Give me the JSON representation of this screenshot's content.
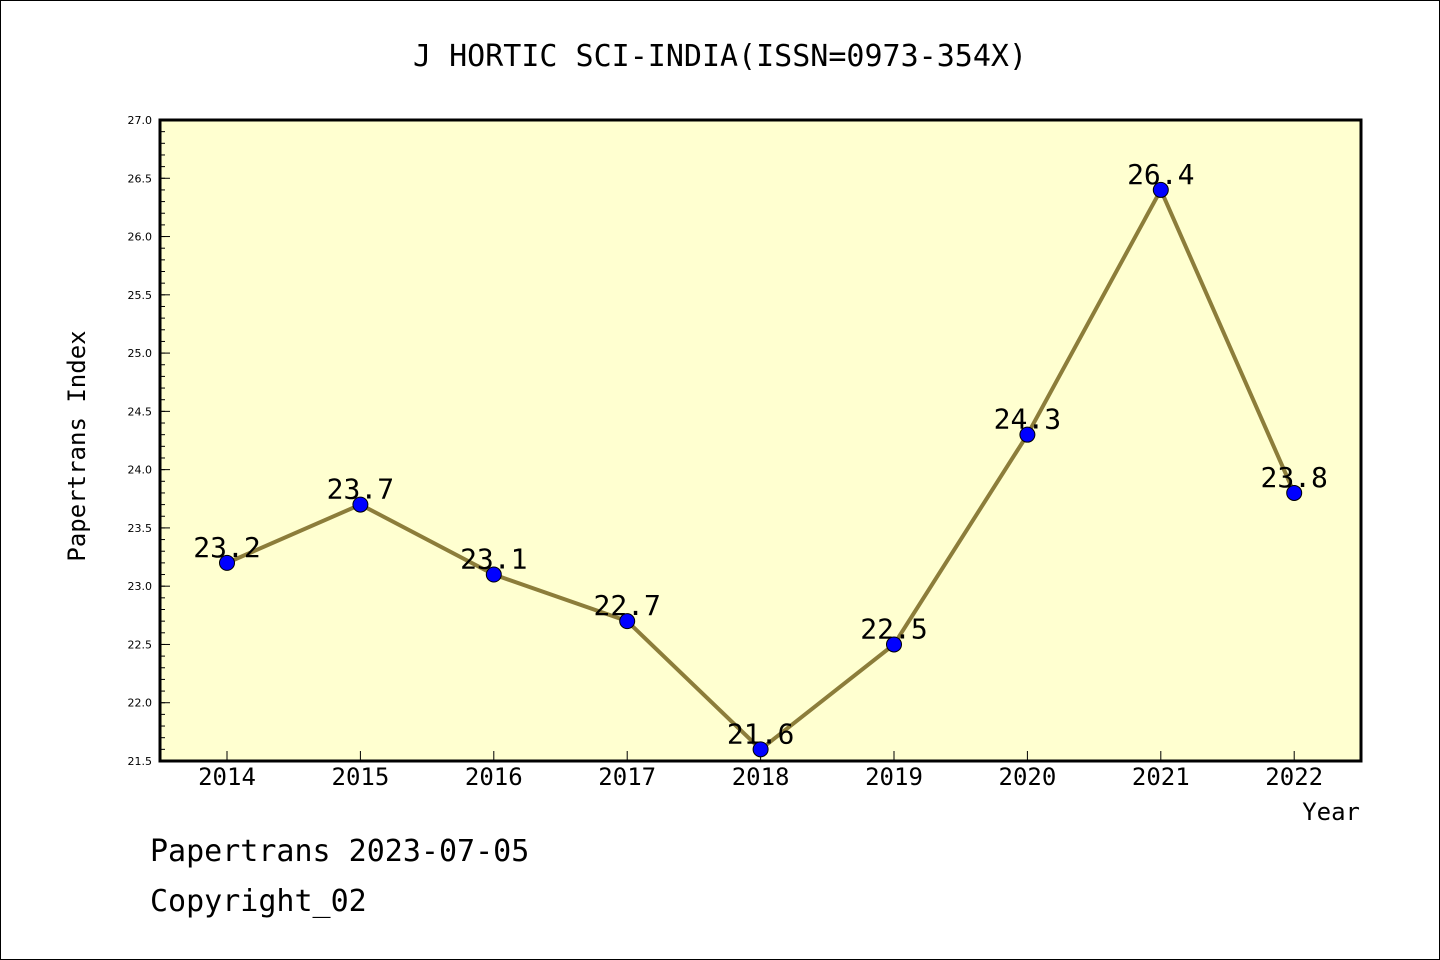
{
  "chart_data": {
    "type": "line",
    "title": "J HORTIC SCI-INDIA(ISSN=0973-354X)",
    "xlabel": "Year",
    "ylabel": "Papertrans Index",
    "categories": [
      "2014",
      "2015",
      "2016",
      "2017",
      "2018",
      "2019",
      "2020",
      "2021",
      "2022"
    ],
    "series": [
      {
        "values": [
          23.2,
          23.7,
          23.1,
          22.7,
          21.6,
          22.5,
          24.3,
          26.4,
          23.8
        ],
        "data_labels": [
          "23.2",
          "23.7",
          "23.1",
          "22.7",
          "21.6",
          "22.5",
          "24.3",
          "26.4",
          "23.8"
        ]
      }
    ],
    "ylim": [
      21.5,
      27.0
    ],
    "yticks": [
      "21.5",
      "22.0",
      "22.5",
      "23.0",
      "23.5",
      "24.0",
      "24.5",
      "25.0",
      "25.5",
      "26.0",
      "26.5",
      "27.0"
    ],
    "grid": false,
    "legend": "none",
    "colors": {
      "plot_background": "#ffffd0",
      "line": "#8c7d3a",
      "marker": "#0000ff"
    }
  },
  "footer": {
    "line1": "Papertrans 2023-07-05",
    "line2": "Copyright_02"
  }
}
